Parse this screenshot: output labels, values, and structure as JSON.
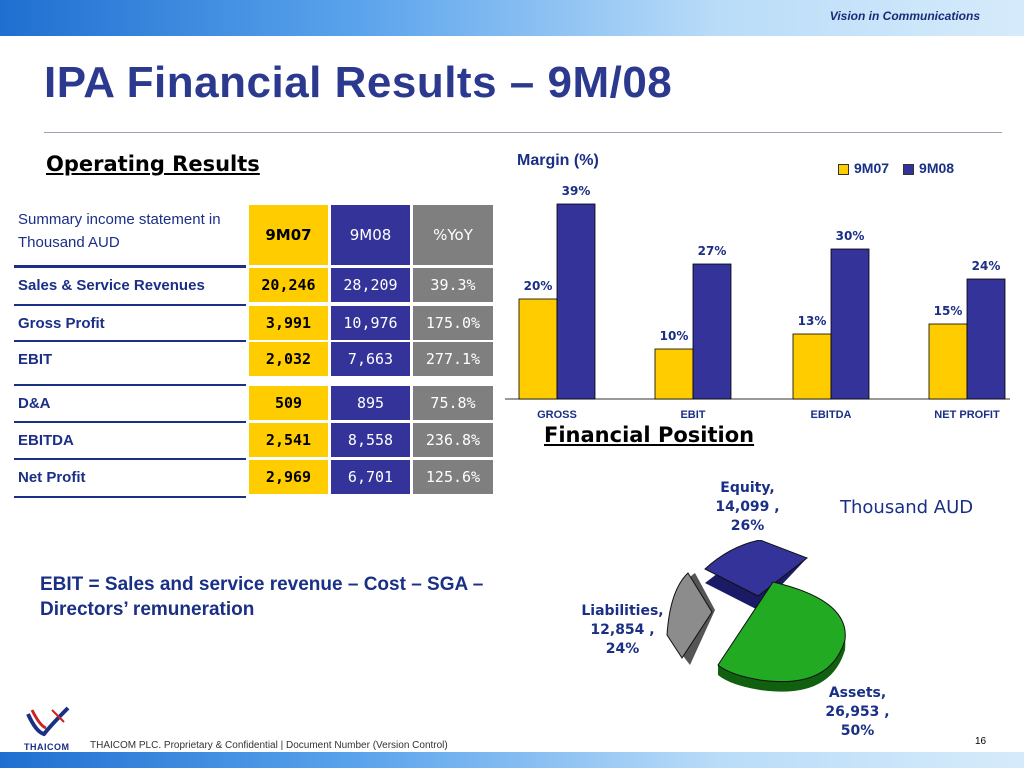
{
  "header": {
    "tagline": "Vision in Communications",
    "title": "IPA Financial Results – 9M/08"
  },
  "operating": {
    "heading": "Operating Results",
    "table": {
      "header_label": "Summary income statement in Thousand AUD",
      "columns": [
        "9M07",
        "9M08",
        "%YoY"
      ],
      "rows": [
        {
          "label": "Sales & Service Revenues",
          "v1": "20,246",
          "v2": "28,209",
          "v3": "39.3%"
        },
        {
          "label": "Gross Profit",
          "v1": "3,991",
          "v2": "10,976",
          "v3": "175.0%"
        },
        {
          "label": "EBIT",
          "v1": "2,032",
          "v2": "7,663",
          "v3": "277.1%"
        },
        {
          "label": "D&A",
          "v1": "509",
          "v2": "895",
          "v3": "75.8%"
        },
        {
          "label": "EBITDA",
          "v1": "2,541",
          "v2": "8,558",
          "v3": "236.8%"
        },
        {
          "label": "Net Profit",
          "v1": "2,969",
          "v2": "6,701",
          "v3": "125.6%"
        }
      ]
    },
    "formula": "EBIT = Sales and service revenue – Cost – SGA – Directors’ remuneration"
  },
  "financial_position": {
    "heading": "Financial Position",
    "unit_note": "Thousand AUD",
    "labels": {
      "equity": [
        "Equity,",
        "14,099 ,",
        "26%"
      ],
      "liabilities": [
        "Liabilities,",
        "12,854 ,",
        "24%"
      ],
      "assets": [
        "Assets,",
        "26,953 ,",
        "50%"
      ]
    }
  },
  "chart_data": [
    {
      "type": "bar",
      "title": "Margin (%)",
      "categories": [
        "GROSS",
        "EBIT",
        "EBITDA",
        "NET PROFIT"
      ],
      "series": [
        {
          "name": "9M07",
          "values": [
            20,
            10,
            13,
            15
          ],
          "color": "#ffcc00"
        },
        {
          "name": "9M08",
          "values": [
            39,
            27,
            30,
            24
          ],
          "color": "#333399"
        }
      ],
      "ylim": [
        0,
        40
      ],
      "legend": "top-right",
      "grid": false
    },
    {
      "type": "pie",
      "categories": [
        "Equity",
        "Liabilities",
        "Assets"
      ],
      "values": [
        14099,
        12854,
        26953
      ],
      "percent": [
        26,
        24,
        50
      ],
      "colors": [
        "#333399",
        "#8c8c8c",
        "#22aa22"
      ]
    }
  ],
  "footer": {
    "logo_text": "THAICOM",
    "text": "THAICOM PLC. Proprietary & Confidential  |  Document Number (Version Control)",
    "page": "16"
  }
}
